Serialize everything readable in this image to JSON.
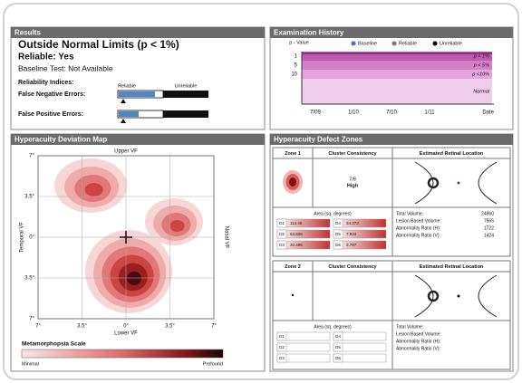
{
  "results": {
    "title": "Results",
    "status": "Outside Normal Limits (p < 1%)",
    "reliable": "Reliable: Yes",
    "baseline": "Baseline Test: Not Available",
    "indices_label": "Reliability Indices:",
    "reliable_label": "Reliable",
    "unreliable_label": "Unreliable",
    "false_negative": "False Negative Errors:",
    "false_positive": "False Positive Errors:"
  },
  "history": {
    "title": "Examination History",
    "y_label": "p - Value",
    "legend": [
      "Baseline",
      "Reliable",
      "Unreliable"
    ],
    "y_ticks": [
      "1",
      "5",
      "10"
    ],
    "bands": [
      "p < 1%",
      "p < 5%",
      "p <10%",
      "Normal"
    ],
    "x_ticks": [
      "7/09",
      "1/10",
      "7/10",
      "1/11"
    ],
    "x_label": "Date"
  },
  "map": {
    "title": "Hyperacuity Deviation Map",
    "top": "Upper VF",
    "bottom": "Lower VF",
    "left": "Temporal VF",
    "right": "Nasal VF",
    "y_ticks": [
      "7°",
      "3.5°",
      "0°",
      "3.5°",
      "7°"
    ],
    "x_ticks": [
      "7°",
      "3.5°",
      "0°",
      "3.5°",
      "7°"
    ],
    "scale_title": "Metamorphopsia Scale",
    "scale_min": "Minimal",
    "scale_max": "Profound"
  },
  "zones": {
    "title": "Hyperacuity Defect Zones",
    "zone_list": [
      {
        "name": "Zone 1",
        "consistency_header": "Cluster Consistency",
        "location_header": "Estimated Retinal Location",
        "consistency": "7/8",
        "consistency_level": "High",
        "area_header": "Area (sq. degrees)",
        "areas": [
          [
            "D1",
            "114.49",
            "D4",
            "34.373"
          ],
          [
            "D2",
            "63.826",
            "D5",
            "7.934"
          ],
          [
            "D3",
            "32.496",
            "D6",
            "2.797"
          ]
        ],
        "stats": [
          [
            "Total Volume:",
            "24860"
          ],
          [
            "Lesion Based Volume:",
            "7565"
          ],
          [
            "Abnormality Ratio (H):",
            "1722"
          ],
          [
            "Abnormality Ratio (V):",
            "1424"
          ]
        ]
      },
      {
        "name": "Zone 2",
        "consistency_header": "Cluster Consistency",
        "location_header": "Estimated Retinal Location",
        "area_header": "Area (sq. degrees)",
        "area_labels": [
          [
            "D1",
            "D4"
          ],
          [
            "D2",
            "D5"
          ],
          [
            "D3",
            "D6"
          ]
        ],
        "stat_labels": [
          "Total Volume:",
          "Lesion Based Volume:",
          "Abnormality Ratio (H):",
          "Abnormality Ratio (V):"
        ]
      }
    ]
  }
}
